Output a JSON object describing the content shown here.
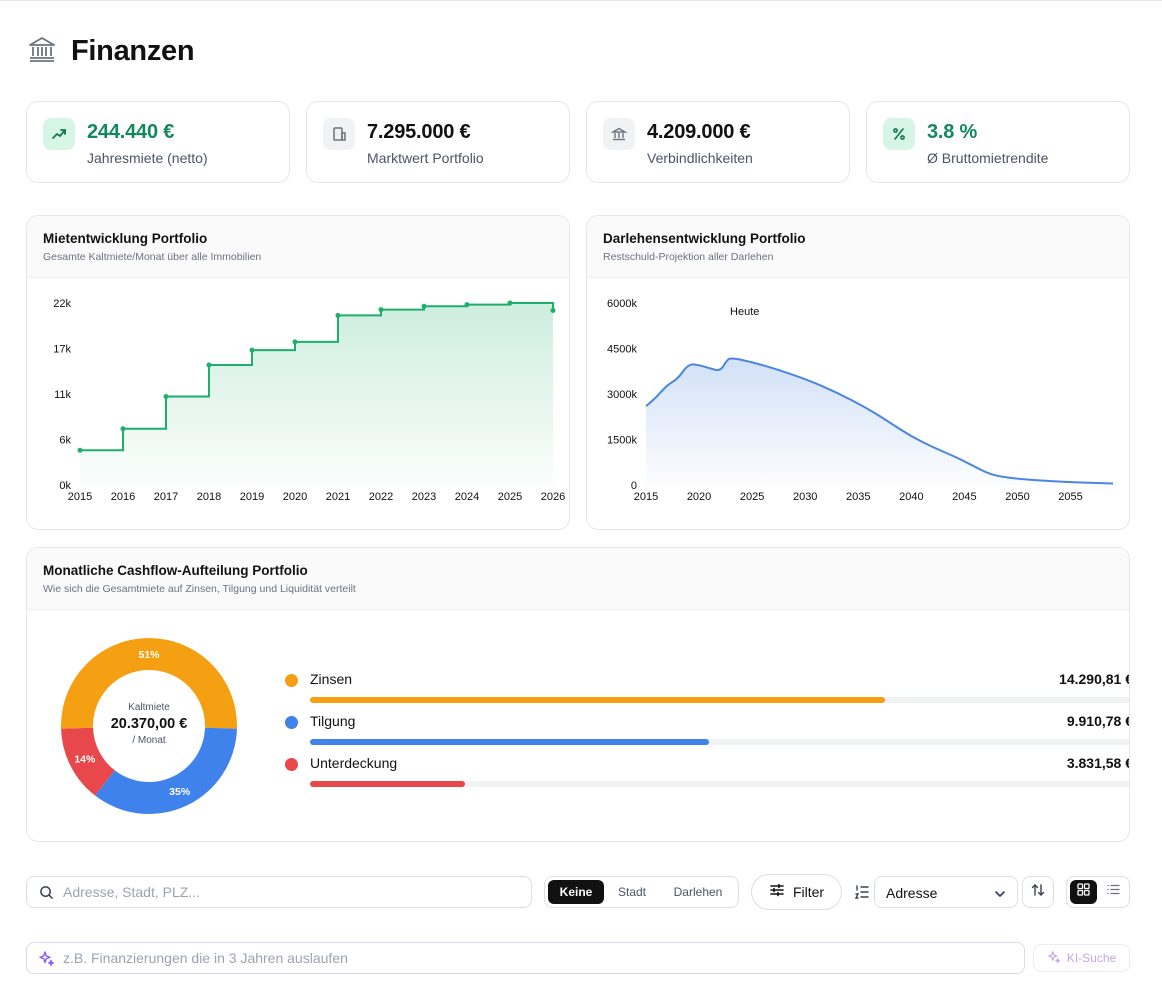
{
  "page": {
    "title": "Finanzen",
    "icon": "bank-icon"
  },
  "kpis": [
    {
      "value": "244.440 €",
      "label": "Jahresmiete (netto)",
      "icon": "trending-up-icon",
      "accent": "#11895a"
    },
    {
      "value": "7.295.000 €",
      "label": "Marktwert Portfolio",
      "icon": "building-icon"
    },
    {
      "value": "4.209.000 €",
      "label": "Verbindlichkeiten",
      "icon": "bank-icon"
    },
    {
      "value": "3.8 %",
      "label": "Ø Bruttomietrendite",
      "icon": "percent-icon",
      "accent": "#11895a"
    }
  ],
  "rent_chart": {
    "title": "Mietentwicklung Portfolio",
    "subtitle": "Gesamte Kaltmiete/Monat über alle Immobilien"
  },
  "loan_chart": {
    "title": "Darlehensentwicklung Portfolio",
    "subtitle": "Restschuld-Projektion aller Darlehen"
  },
  "cashflow": {
    "title": "Monatliche Cashflow-Aufteilung Portfolio",
    "subtitle": "Wie sich die Gesamtmiete auf Zinsen, Tilgung und Liquidität verteilt",
    "center_label": "Kaltmiete",
    "center_value": "20.370,00 €",
    "center_unit": "/ Monat"
  },
  "toolbar": {
    "search_placeholder": "Adresse, Stadt, PLZ...",
    "group_options": [
      "Keine",
      "Stadt",
      "Darlehen"
    ],
    "group_active": "Keine",
    "filter_label": "Filter",
    "sort_value": "Adresse",
    "ai_placeholder": "z.B. Finanzierungen die in 3 Jahren auslaufen",
    "ai_button": "KI-Suche"
  },
  "chart_data": [
    {
      "type": "area",
      "title": "Mietentwicklung Portfolio",
      "subtitle": "Gesamte Kaltmiete/Monat über alle Immobilien",
      "x_ticks": [
        "2015",
        "2016",
        "2017",
        "2018",
        "2019",
        "2020",
        "2021",
        "2022",
        "2023",
        "2024",
        "2025",
        "2026"
      ],
      "y_ticks": [
        "0k",
        "6k",
        "11k",
        "17k",
        "22k"
      ],
      "ylim": [
        0,
        22000
      ],
      "xlim": [
        2015,
        2026
      ],
      "step": true,
      "color": "#1fae6b",
      "x": [
        2015,
        2016,
        2017,
        2018,
        2019,
        2020,
        2021,
        2022,
        2023,
        2024,
        2025,
        2026
      ],
      "values": [
        4200,
        6800,
        10700,
        14500,
        16300,
        17300,
        20500,
        21200,
        21600,
        21800,
        22000,
        21100
      ]
    },
    {
      "type": "area",
      "title": "Darlehensentwicklung Portfolio",
      "subtitle": "Restschuld-Projektion aller Darlehen",
      "x_ticks": [
        "2015",
        "2020",
        "2025",
        "2030",
        "2035",
        "2040",
        "2045",
        "2050",
        "2055"
      ],
      "y_ticks": [
        "0",
        "1500k",
        "3000k",
        "4500k",
        "6000k"
      ],
      "ylim": [
        0,
        6000000
      ],
      "xlim": [
        2015,
        2059
      ],
      "annotation": {
        "label": "Heute",
        "x": 2024.3
      },
      "color": "#4a86e0",
      "x": [
        2015,
        2016,
        2017,
        2018,
        2019,
        2020,
        2021,
        2022,
        2022.6,
        2023,
        2025,
        2027,
        2030,
        2033,
        2036,
        2038,
        2040,
        2042,
        2044,
        2045,
        2046,
        2047,
        2048,
        2050,
        2053,
        2056,
        2059
      ],
      "values": [
        2600000,
        2900000,
        3300000,
        3500000,
        4000000,
        3950000,
        3850000,
        3750000,
        4100000,
        4200000,
        4050000,
        3850000,
        3500000,
        3050000,
        2500000,
        2050000,
        1600000,
        1250000,
        950000,
        780000,
        600000,
        420000,
        300000,
        200000,
        130000,
        80000,
        50000
      ]
    },
    {
      "type": "pie",
      "title": "Monatliche Cashflow-Aufteilung Portfolio",
      "slices": [
        {
          "name": "Zinsen",
          "percent": 51,
          "amount": "14.290,81 €",
          "share": 0.7,
          "color": "#f4a012"
        },
        {
          "name": "Tilgung",
          "percent": 35,
          "amount": "9.910,78 €",
          "share": 0.485,
          "color": "#3f82ec"
        },
        {
          "name": "Unterdeckung",
          "percent": 14,
          "amount": "3.831,58 €",
          "share": 0.188,
          "color": "#e8484b"
        }
      ]
    }
  ]
}
